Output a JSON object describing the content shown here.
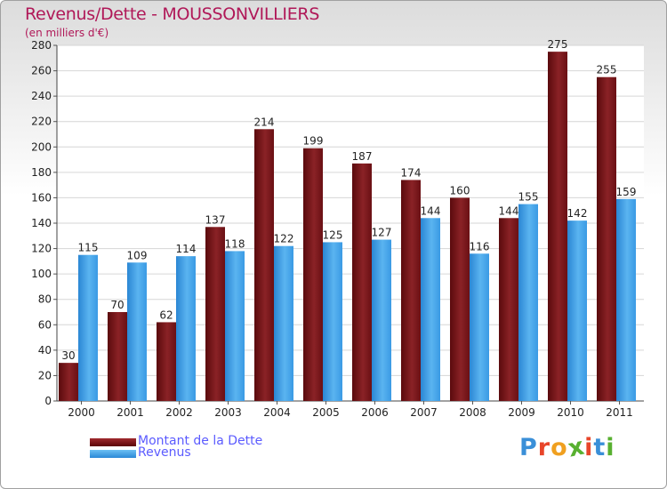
{
  "title": "Revenus/Dette - MOUSSONVILLIERS",
  "subtitle": "(en milliers d'€)",
  "logo": "Proxiti",
  "colors": {
    "title": "#b01858",
    "dette": "#7a1418",
    "revenus": "#3aa0e8",
    "legend_text": "#5b5bff"
  },
  "legend": [
    {
      "label": "Montant de la Dette",
      "color": "#6e0d10"
    },
    {
      "label": "Revenus",
      "color": "#3a9ee6"
    }
  ],
  "chart_data": {
    "type": "bar",
    "title": "Revenus/Dette - MOUSSONVILLIERS",
    "subtitle": "(en milliers d'€)",
    "xlabel": "",
    "ylabel": "",
    "ylim": [
      0,
      280
    ],
    "yticks": [
      0,
      20,
      40,
      60,
      80,
      100,
      120,
      140,
      160,
      180,
      200,
      220,
      240,
      260,
      280
    ],
    "grid": true,
    "legend_position": "bottom-left",
    "categories": [
      "2000",
      "2001",
      "2002",
      "2003",
      "2004",
      "2005",
      "2006",
      "2007",
      "2008",
      "2009",
      "2010",
      "2011"
    ],
    "series": [
      {
        "name": "Montant de la Dette",
        "values": [
          30,
          70,
          62,
          137,
          214,
          199,
          187,
          174,
          160,
          144,
          275,
          255
        ]
      },
      {
        "name": "Revenus",
        "values": [
          115,
          109,
          114,
          118,
          122,
          125,
          127,
          144,
          116,
          155,
          142,
          159
        ]
      }
    ]
  }
}
